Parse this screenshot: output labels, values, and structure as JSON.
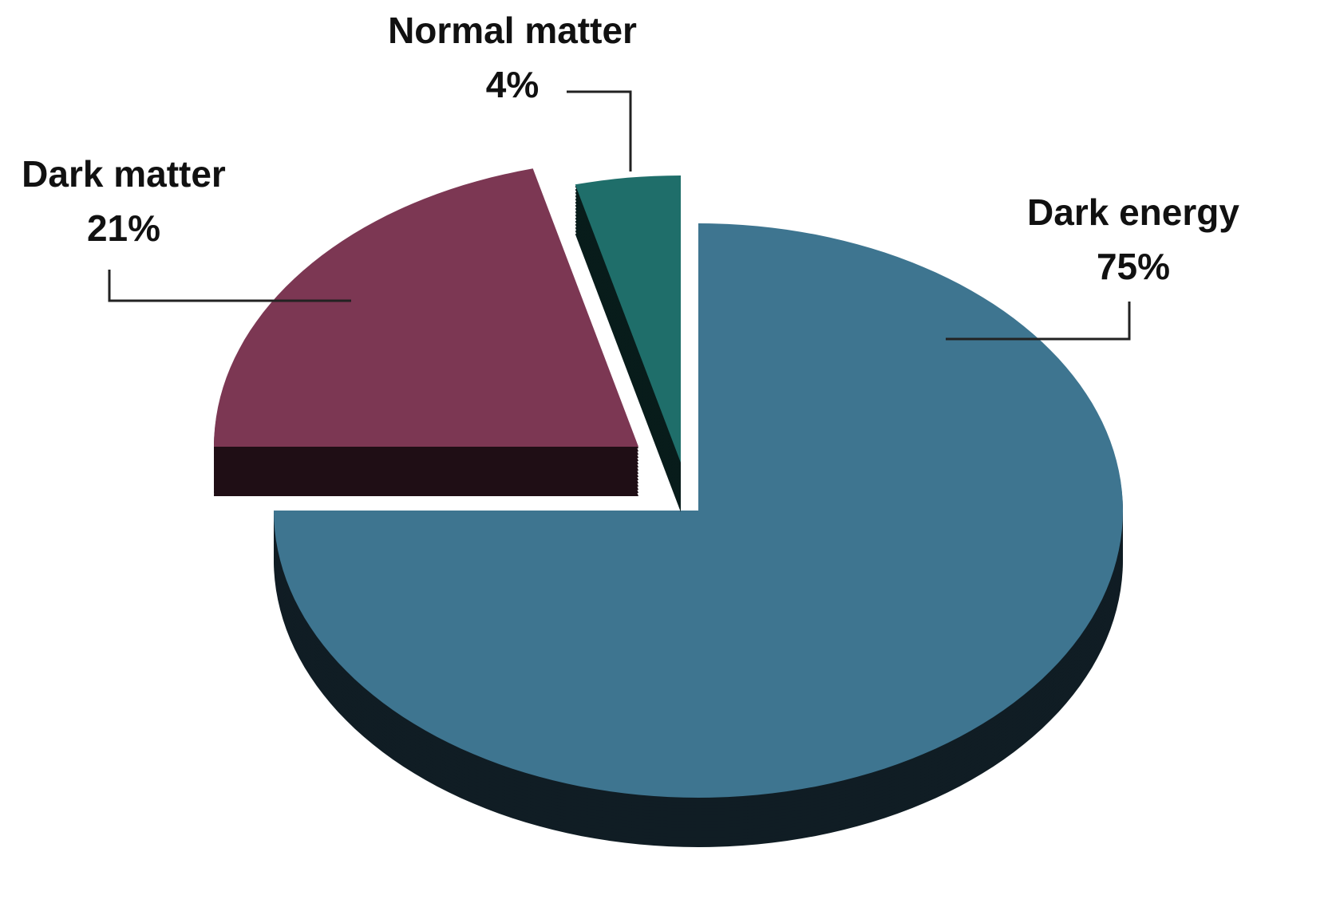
{
  "chart_data": {
    "type": "pie",
    "categories": [
      "Dark energy",
      "Dark matter",
      "Normal matter"
    ],
    "values": [
      75,
      21,
      4
    ],
    "value_labels": [
      "75%",
      "21%",
      "4%"
    ],
    "colors": [
      "#3e7590",
      "#7c3753",
      "#1f6e6a"
    ]
  }
}
